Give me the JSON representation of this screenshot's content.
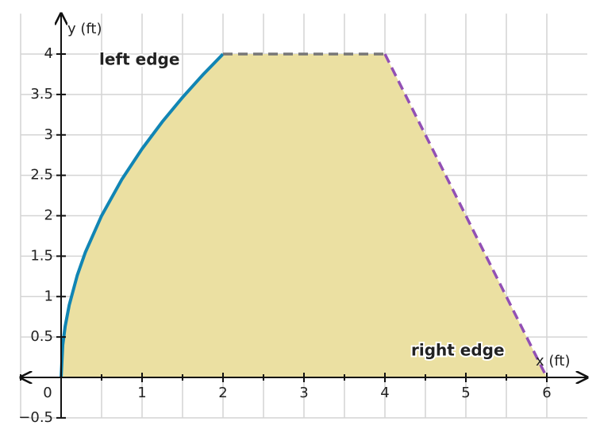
{
  "chart_data": {
    "type": "line",
    "x_label": "x (ft)",
    "y_label": "y (ft)",
    "xlim": [
      -0.5,
      6.5
    ],
    "ylim": [
      -0.5,
      4.5
    ],
    "xticks": [
      0,
      1,
      2,
      3,
      4,
      5,
      6
    ],
    "xminor": [
      -0.5,
      0.5,
      1.5,
      2.5,
      3.5,
      4.5,
      5.5
    ],
    "yticks": [
      {
        "value": -0.5,
        "label": "−0.5"
      },
      0.5,
      1,
      1.5,
      2,
      2.5,
      3,
      3.5,
      4
    ],
    "grid": true,
    "fill_color": "#ebe0a2",
    "series": [
      {
        "color": "#1185b4",
        "style": "solid",
        "x": [
          0,
          0.02,
          0.05,
          0.1,
          0.2,
          0.3,
          0.5,
          0.75,
          1,
          1.25,
          1.5,
          1.75,
          2
        ],
        "values": [
          0,
          0.4,
          0.632,
          0.894,
          1.265,
          1.549,
          2,
          2.449,
          2.828,
          3.162,
          3.464,
          3.742,
          4
        ]
      },
      {
        "color": "#777777",
        "style": "dashed",
        "x": [
          2,
          4
        ],
        "values": [
          4,
          4
        ]
      },
      {
        "color": "#9250b5",
        "style": "dashed",
        "x": [
          4,
          6
        ],
        "values": [
          4,
          0
        ]
      }
    ],
    "annotations": [
      {
        "text": "left edge",
        "color": "#1185b4"
      },
      {
        "text": "right edge",
        "color": "#9250b5"
      }
    ]
  }
}
